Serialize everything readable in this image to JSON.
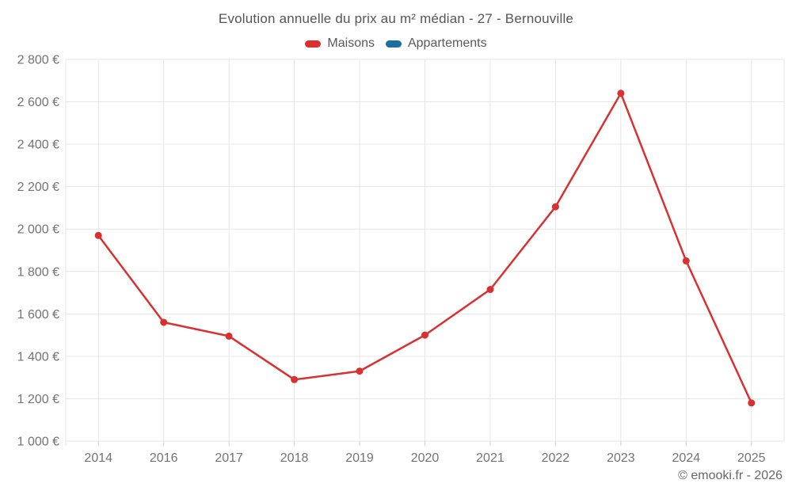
{
  "page": {
    "title": "Evolution annuelle du prix au m² médian - 27 - Bernouville",
    "footer": "© emooki.fr - 2026"
  },
  "legend": {
    "items": [
      {
        "label": "Maisons",
        "color": "#d93030"
      },
      {
        "label": "Appartements",
        "color": "#1a6ea0"
      }
    ]
  },
  "chart_data": {
    "type": "line",
    "title": "Evolution annuelle du prix au m² médian - 27 - Bernouville",
    "categories": [
      "2014",
      "2016",
      "2017",
      "2018",
      "2019",
      "2020",
      "2021",
      "2022",
      "2023",
      "2024",
      "2025"
    ],
    "series": [
      {
        "name": "Maisons",
        "color": "#d93030",
        "values": [
          1970,
          1560,
          1495,
          1290,
          1330,
          1500,
          1715,
          2105,
          2640,
          1850,
          1180
        ]
      },
      {
        "name": "Appartements",
        "color": "#1a6ea0",
        "values": []
      }
    ],
    "xlabel": "",
    "ylabel": "",
    "ytick_format": "{value} €",
    "ylim": [
      1000,
      2800
    ],
    "ytick_step": 200,
    "grid": true,
    "legend_position": "top",
    "marker": "circle"
  },
  "colors": {
    "grid": "#e6e6e6",
    "tick_mark": "#cfcfcf",
    "tick_label": "#737373",
    "title_text": "#555555",
    "footer_text": "#666666",
    "background": "#ffffff"
  }
}
